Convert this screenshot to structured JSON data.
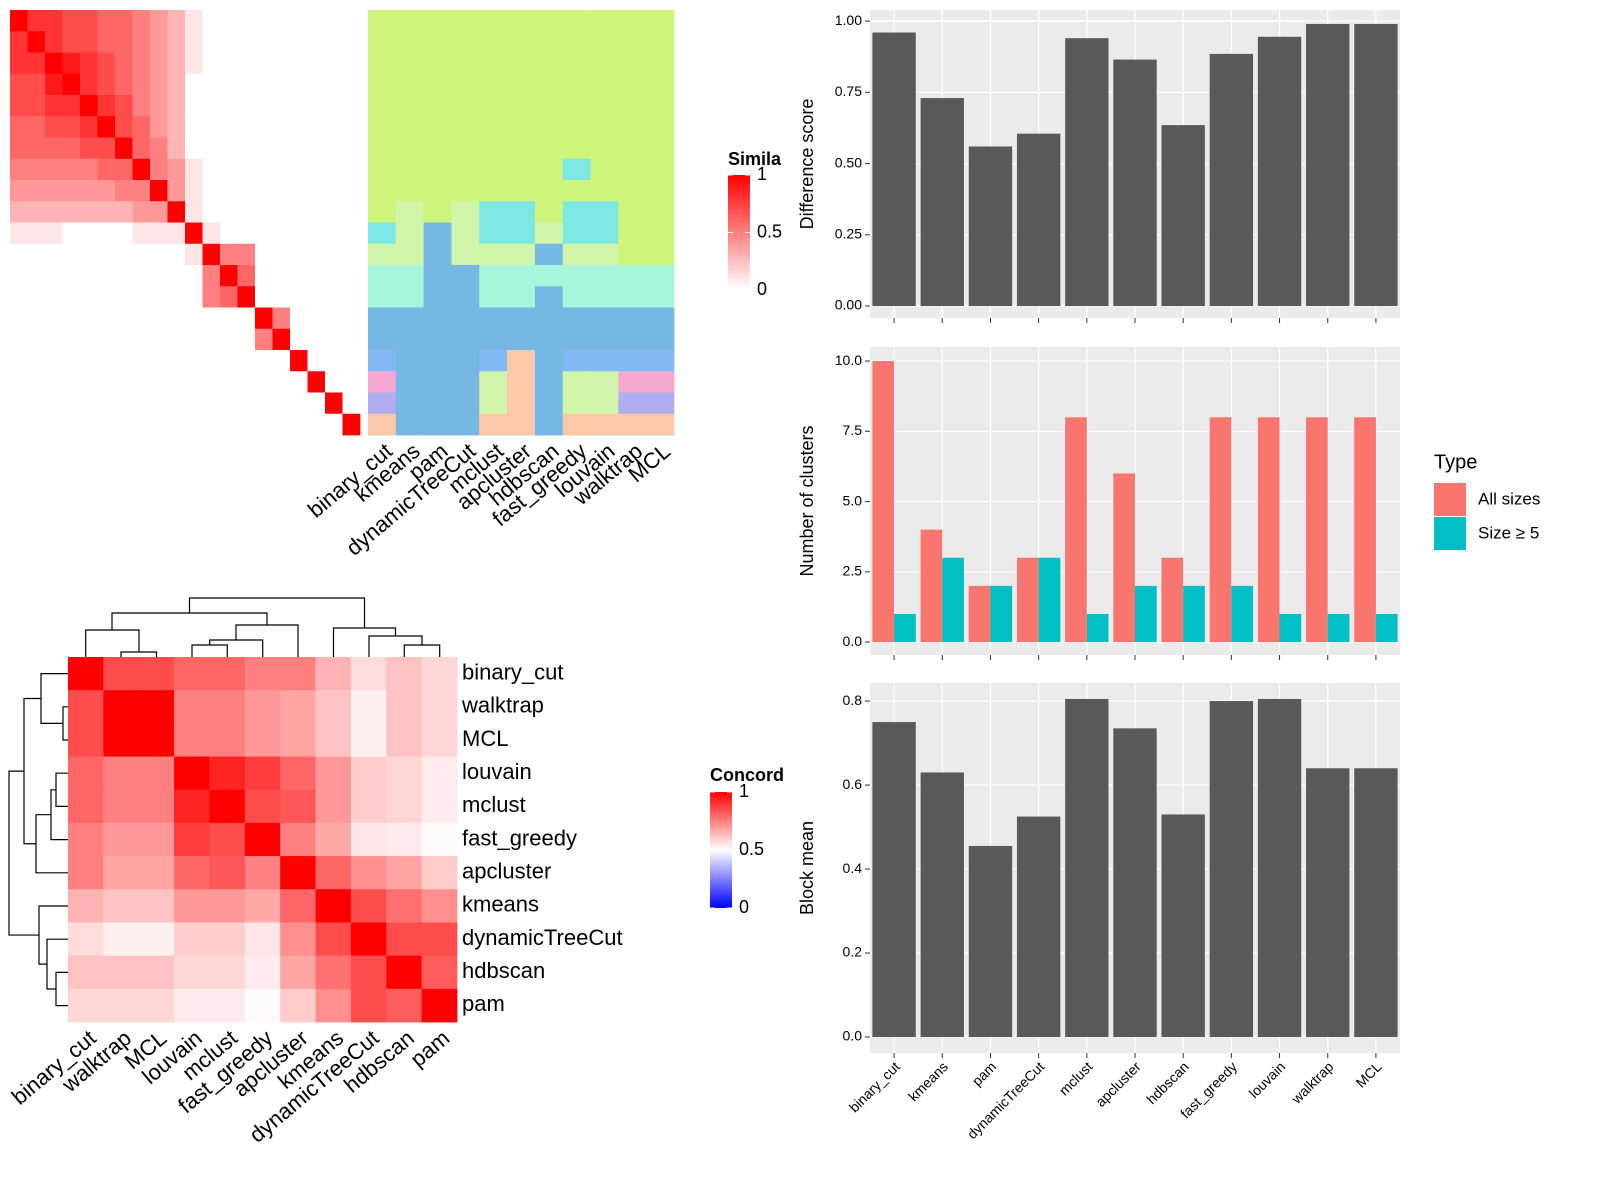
{
  "chart_data": [
    {
      "type": "heatmap",
      "legend_title": "Simila",
      "colors": [
        "#ffffff",
        "#ff0000"
      ],
      "lim": [
        0,
        1
      ],
      "ticks": [
        0,
        0.5,
        1
      ],
      "matrix": [
        [
          1,
          0.8,
          0.8,
          0.7,
          0.7,
          0.6,
          0.6,
          0.5,
          0.4,
          0.3,
          0.1,
          0,
          0,
          0,
          0,
          0,
          0,
          0,
          0,
          0
        ],
        [
          0.8,
          1,
          0.8,
          0.7,
          0.7,
          0.6,
          0.6,
          0.5,
          0.4,
          0.3,
          0.1,
          0,
          0,
          0,
          0,
          0,
          0,
          0,
          0,
          0
        ],
        [
          0.8,
          0.8,
          1,
          0.9,
          0.8,
          0.7,
          0.6,
          0.5,
          0.4,
          0.3,
          0.1,
          0,
          0,
          0,
          0,
          0,
          0,
          0,
          0,
          0
        ],
        [
          0.7,
          0.7,
          0.9,
          1,
          0.8,
          0.7,
          0.6,
          0.5,
          0.4,
          0.3,
          0,
          0,
          0,
          0,
          0,
          0,
          0,
          0,
          0,
          0
        ],
        [
          0.7,
          0.7,
          0.8,
          0.8,
          1,
          0.8,
          0.7,
          0.5,
          0.4,
          0.3,
          0,
          0,
          0,
          0,
          0,
          0,
          0,
          0,
          0,
          0
        ],
        [
          0.6,
          0.6,
          0.7,
          0.7,
          0.8,
          1,
          0.7,
          0.6,
          0.4,
          0.3,
          0,
          0,
          0,
          0,
          0,
          0,
          0,
          0,
          0,
          0
        ],
        [
          0.6,
          0.6,
          0.6,
          0.6,
          0.7,
          0.7,
          1,
          0.6,
          0.5,
          0.3,
          0,
          0,
          0,
          0,
          0,
          0,
          0,
          0,
          0,
          0
        ],
        [
          0.5,
          0.5,
          0.5,
          0.5,
          0.5,
          0.6,
          0.6,
          1,
          0.5,
          0.4,
          0.1,
          0,
          0,
          0,
          0,
          0,
          0,
          0,
          0,
          0
        ],
        [
          0.4,
          0.4,
          0.4,
          0.4,
          0.4,
          0.4,
          0.5,
          0.5,
          1,
          0.4,
          0.1,
          0,
          0,
          0,
          0,
          0,
          0,
          0,
          0,
          0
        ],
        [
          0.3,
          0.3,
          0.3,
          0.3,
          0.3,
          0.3,
          0.3,
          0.4,
          0.4,
          1,
          0.1,
          0,
          0,
          0,
          0,
          0,
          0,
          0,
          0,
          0
        ],
        [
          0.1,
          0.1,
          0.1,
          0,
          0,
          0,
          0,
          0.1,
          0.1,
          0.1,
          1,
          0.1,
          0,
          0,
          0,
          0,
          0,
          0,
          0,
          0
        ],
        [
          0,
          0,
          0,
          0,
          0,
          0,
          0,
          0,
          0,
          0,
          0.1,
          1,
          0.5,
          0.5,
          0,
          0,
          0,
          0,
          0,
          0
        ],
        [
          0,
          0,
          0,
          0,
          0,
          0,
          0,
          0,
          0,
          0,
          0,
          0.5,
          1,
          0.6,
          0,
          0,
          0,
          0,
          0,
          0
        ],
        [
          0,
          0,
          0,
          0,
          0,
          0,
          0,
          0,
          0,
          0,
          0,
          0.5,
          0.6,
          1,
          0,
          0,
          0,
          0,
          0,
          0
        ],
        [
          0,
          0,
          0,
          0,
          0,
          0,
          0,
          0,
          0,
          0,
          0,
          0,
          0,
          0,
          1,
          0.5,
          0,
          0,
          0,
          0
        ],
        [
          0,
          0,
          0,
          0,
          0,
          0,
          0,
          0,
          0,
          0,
          0,
          0,
          0,
          0,
          0.5,
          1,
          0,
          0,
          0,
          0
        ],
        [
          0,
          0,
          0,
          0,
          0,
          0,
          0,
          0,
          0,
          0,
          0,
          0,
          0,
          0,
          0,
          0,
          1,
          0,
          0,
          0
        ],
        [
          0,
          0,
          0,
          0,
          0,
          0,
          0,
          0,
          0,
          0,
          0,
          0,
          0,
          0,
          0,
          0,
          0,
          1,
          0,
          0
        ],
        [
          0,
          0,
          0,
          0,
          0,
          0,
          0,
          0,
          0,
          0,
          0,
          0,
          0,
          0,
          0,
          0,
          0,
          0,
          1,
          0
        ],
        [
          0,
          0,
          0,
          0,
          0,
          0,
          0,
          0,
          0,
          0,
          0,
          0,
          0,
          0,
          0,
          0,
          0,
          0,
          0,
          1
        ]
      ]
    },
    {
      "type": "tile",
      "categories": [
        "binary_cut",
        "kmeans",
        "pam",
        "dynamicTreeCut",
        "mclust",
        "apcluster",
        "hdbscan",
        "fast_greedy",
        "louvain",
        "walktrap",
        "MCL"
      ],
      "colors": [
        "#cff47b",
        "#7de8e3",
        "#d1f5a8",
        "#a9f5dc",
        "#76b8e3",
        "#82b9f5",
        "#f5a8d0",
        "#b0aef0",
        "#fcc9a8"
      ],
      "clusters": [
        [
          0,
          0,
          0,
          0,
          0,
          0,
          0,
          0,
          0,
          0,
          1,
          2,
          3,
          3,
          4,
          4,
          5,
          6,
          7,
          8
        ],
        [
          0,
          0,
          0,
          0,
          0,
          0,
          0,
          0,
          0,
          2,
          2,
          2,
          3,
          3,
          4,
          4,
          4,
          4,
          4,
          4
        ],
        [
          0,
          0,
          0,
          0,
          0,
          0,
          0,
          0,
          0,
          0,
          4,
          4,
          4,
          4,
          4,
          4,
          4,
          4,
          4,
          4
        ],
        [
          0,
          0,
          0,
          0,
          0,
          0,
          0,
          0,
          0,
          2,
          2,
          2,
          4,
          4,
          4,
          4,
          4,
          4,
          4,
          4
        ],
        [
          0,
          0,
          0,
          0,
          0,
          0,
          0,
          0,
          0,
          1,
          1,
          2,
          3,
          3,
          4,
          4,
          5,
          2,
          2,
          8
        ],
        [
          0,
          0,
          0,
          0,
          0,
          0,
          0,
          0,
          0,
          1,
          1,
          2,
          3,
          3,
          4,
          4,
          8,
          8,
          8,
          8
        ],
        [
          0,
          0,
          0,
          0,
          0,
          0,
          0,
          0,
          0,
          0,
          2,
          4,
          3,
          4,
          4,
          4,
          4,
          4,
          4,
          4
        ],
        [
          0,
          0,
          0,
          0,
          0,
          0,
          0,
          1,
          0,
          1,
          1,
          2,
          3,
          3,
          4,
          4,
          5,
          2,
          2,
          8
        ],
        [
          0,
          0,
          0,
          0,
          0,
          0,
          0,
          0,
          0,
          1,
          1,
          2,
          3,
          3,
          4,
          4,
          5,
          2,
          2,
          8
        ],
        [
          0,
          0,
          0,
          0,
          0,
          0,
          0,
          0,
          0,
          0,
          0,
          0,
          3,
          3,
          4,
          4,
          5,
          6,
          7,
          8
        ],
        [
          0,
          0,
          0,
          0,
          0,
          0,
          0,
          0,
          0,
          0,
          0,
          0,
          3,
          3,
          4,
          4,
          5,
          6,
          7,
          8
        ]
      ]
    },
    {
      "type": "heatmap",
      "legend_title": "Concord",
      "colors": [
        "#0000ff",
        "#ffffff",
        "#ff0000"
      ],
      "lim": [
        0,
        1
      ],
      "ticks": [
        0,
        0.5,
        1
      ],
      "labels": [
        "binary_cut",
        "walktrap",
        "MCL",
        "louvain",
        "mclust",
        "fast_greedy",
        "apcluster",
        "kmeans",
        "dynamicTreeCut",
        "hdbscan",
        "pam"
      ],
      "matrix": [
        [
          1,
          0.85,
          0.85,
          0.8,
          0.8,
          0.75,
          0.75,
          0.65,
          0.57,
          0.62,
          0.58
        ],
        [
          0.85,
          1,
          1,
          0.75,
          0.75,
          0.7,
          0.68,
          0.62,
          0.53,
          0.62,
          0.58
        ],
        [
          0.85,
          1,
          1,
          0.75,
          0.75,
          0.7,
          0.68,
          0.62,
          0.53,
          0.62,
          0.58
        ],
        [
          0.8,
          0.75,
          0.75,
          1,
          0.93,
          0.88,
          0.8,
          0.7,
          0.6,
          0.58,
          0.54
        ],
        [
          0.8,
          0.75,
          0.75,
          0.93,
          1,
          0.85,
          0.83,
          0.7,
          0.6,
          0.58,
          0.54
        ],
        [
          0.75,
          0.7,
          0.7,
          0.88,
          0.85,
          1,
          0.75,
          0.67,
          0.55,
          0.54,
          0.51
        ],
        [
          0.75,
          0.68,
          0.68,
          0.8,
          0.83,
          0.75,
          1,
          0.8,
          0.72,
          0.68,
          0.6
        ],
        [
          0.65,
          0.62,
          0.62,
          0.7,
          0.7,
          0.67,
          0.8,
          1,
          0.85,
          0.78,
          0.72
        ],
        [
          0.57,
          0.53,
          0.53,
          0.6,
          0.6,
          0.55,
          0.72,
          0.85,
          1,
          0.85,
          0.85
        ],
        [
          0.62,
          0.62,
          0.62,
          0.58,
          0.58,
          0.54,
          0.68,
          0.78,
          0.85,
          1,
          0.82
        ],
        [
          0.58,
          0.58,
          0.58,
          0.54,
          0.54,
          0.51,
          0.6,
          0.72,
          0.85,
          0.82,
          1
        ]
      ]
    },
    {
      "type": "bar",
      "y_label": "Difference score",
      "color": "#595959",
      "values": [
        0.96,
        0.73,
        0.56,
        0.605,
        0.94,
        0.865,
        0.635,
        0.885,
        0.945,
        0.99,
        0.99
      ],
      "ylim": [
        -0.042,
        1.039
      ],
      "yticks": [
        {
          "value": 0,
          "label": "0.00"
        },
        {
          "value": 0.25,
          "label": "0.25"
        },
        {
          "value": 0.5,
          "label": "0.50"
        },
        {
          "value": 0.75,
          "label": "0.75"
        },
        {
          "value": 1,
          "label": "1.00"
        }
      ]
    },
    {
      "type": "grouped_bar",
      "y_label": "Number of clusters",
      "legend_title": "Type",
      "series": [
        {
          "name": "All sizes",
          "color": "#f8766d",
          "values": [
            10,
            4,
            2,
            3,
            8,
            6,
            3,
            8,
            8,
            8,
            8
          ]
        },
        {
          "name": "Size ≥ 5",
          "color": "#00bfc4",
          "values": [
            1,
            3,
            2,
            3,
            1,
            2,
            2,
            2,
            1,
            1,
            1
          ]
        }
      ],
      "ylim": [
        -0.46,
        10.5
      ],
      "yticks": [
        {
          "value": 0,
          "label": "0.0"
        },
        2.5,
        {
          "value": 5,
          "label": "5.0"
        },
        7.5,
        {
          "value": 10,
          "label": "10.0"
        }
      ]
    },
    {
      "type": "bar",
      "y_label": "Block mean",
      "color": "#595959",
      "categories": [
        "binary_cut",
        "kmeans",
        "pam",
        "dynamicTreeCut",
        "mclust",
        "apcluster",
        "hdbscan",
        "fast_greedy",
        "louvain",
        "walktrap",
        "MCL"
      ],
      "values": [
        0.75,
        0.63,
        0.455,
        0.525,
        0.805,
        0.735,
        0.53,
        0.8,
        0.805,
        0.64,
        0.64
      ],
      "ylim": [
        -0.038,
        0.843
      ],
      "yticks": [
        {
          "value": 0,
          "label": "0.0"
        },
        0.2,
        0.4,
        0.6,
        0.8
      ]
    }
  ]
}
